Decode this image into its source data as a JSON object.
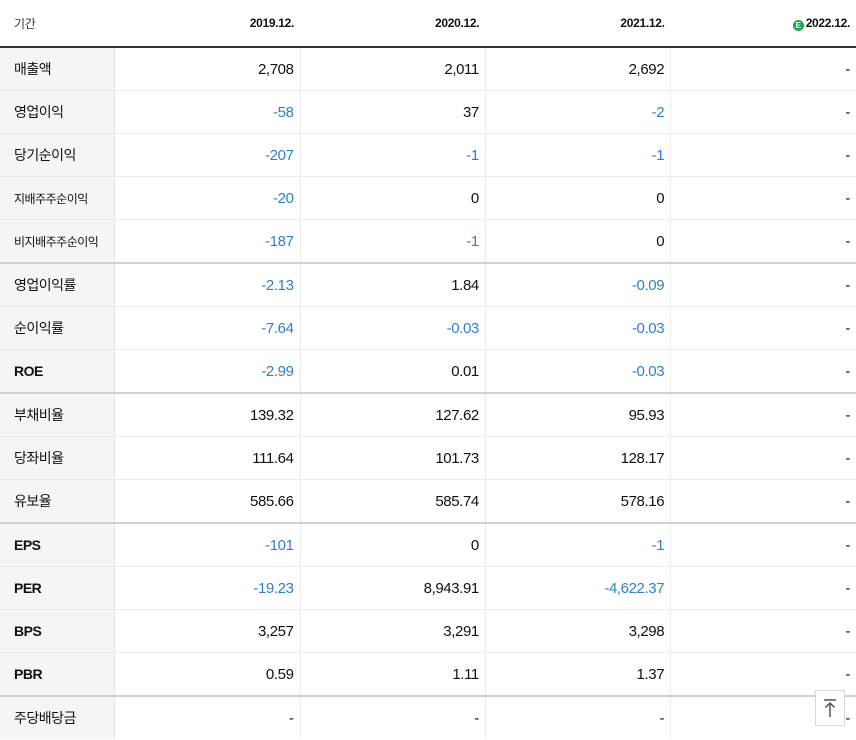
{
  "header": {
    "label": "기간",
    "years": [
      "2019.12.",
      "2020.12.",
      "2021.12.",
      "2022.12."
    ],
    "estimate_badge": "E"
  },
  "rows": [
    {
      "label": "매출액",
      "values": [
        "2,708",
        "2,011",
        "2,692",
        "-"
      ]
    },
    {
      "label": "영업이익",
      "values": [
        "-58",
        "37",
        "-2",
        "-"
      ]
    },
    {
      "label": "당기순이익",
      "values": [
        "-207",
        "-1",
        "-1",
        "-"
      ]
    },
    {
      "label": "지배주주순이익",
      "values": [
        "-20",
        "0",
        "0",
        "-"
      ]
    },
    {
      "label": "비지배주주순이익",
      "values": [
        "-187",
        "-1",
        "0",
        "-"
      ]
    },
    {
      "label": "영업이익률",
      "values": [
        "-2.13",
        "1.84",
        "-0.09",
        "-"
      ]
    },
    {
      "label": "순이익률",
      "values": [
        "-7.64",
        "-0.03",
        "-0.03",
        "-"
      ]
    },
    {
      "label": "ROE",
      "values": [
        "-2.99",
        "0.01",
        "-0.03",
        "-"
      ]
    },
    {
      "label": "부채비율",
      "values": [
        "139.32",
        "127.62",
        "95.93",
        "-"
      ]
    },
    {
      "label": "당좌비율",
      "values": [
        "111.64",
        "101.73",
        "128.17",
        "-"
      ]
    },
    {
      "label": "유보율",
      "values": [
        "585.66",
        "585.74",
        "578.16",
        "-"
      ]
    },
    {
      "label": "EPS",
      "values": [
        "-101",
        "0",
        "-1",
        "-"
      ]
    },
    {
      "label": "PER",
      "values": [
        "-19.23",
        "8,943.91",
        "-4,622.37",
        "-"
      ]
    },
    {
      "label": "BPS",
      "values": [
        "3,257",
        "3,291",
        "3,298",
        "-"
      ]
    },
    {
      "label": "PBR",
      "values": [
        "0.59",
        "1.11",
        "1.37",
        "-"
      ]
    },
    {
      "label": "주당배당금",
      "values": [
        "-",
        "-",
        "-",
        "-"
      ]
    }
  ],
  "colors": {
    "negative": "#2f7fd0",
    "label_bg": "#f5f5f5",
    "estimate_badge": "#1ea64e"
  },
  "icons": {
    "scroll_top": "arrow-up-to-line-icon"
  }
}
